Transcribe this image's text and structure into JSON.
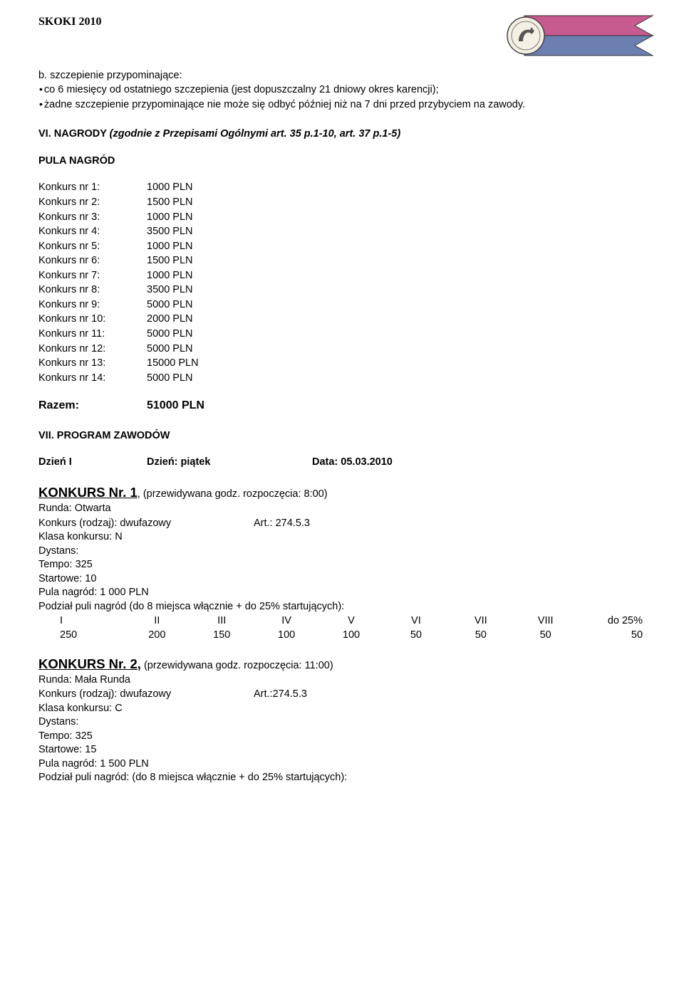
{
  "header": {
    "skoki": "SKOKI 2010"
  },
  "section_b": {
    "title": "b. szczepienie przypominające:",
    "bullet1": "co 6 miesięcy od ostatniego szczepienia (jest dopuszczalny 21 dniowy okres karencji);",
    "bullet2": "żadne szczepienie przypominające nie może się odbyć później niż na 7 dni przed przybyciem na zawody."
  },
  "section_vi": {
    "heading_bold": "VI. NAGRODY ",
    "heading_italic": "(zgodnie z Przepisami Ogólnymi art. 35 p.1-10, art. 37 p.1-5)"
  },
  "pula_label": "PULA NAGRÓD",
  "prizes": [
    {
      "label": "Konkurs nr 1:",
      "value": "1000 PLN"
    },
    {
      "label": "Konkurs nr 2:",
      "value": "1500 PLN"
    },
    {
      "label": "Konkurs nr 3:",
      "value": "1000 PLN"
    },
    {
      "label": "Konkurs nr 4:",
      "value": "3500 PLN"
    },
    {
      "label": "Konkurs nr 5:",
      "value": "1000 PLN"
    },
    {
      "label": "Konkurs nr 6:",
      "value": "1500 PLN"
    },
    {
      "label": "Konkurs nr 7:",
      "value": "1000 PLN"
    },
    {
      "label": "Konkurs nr 8:",
      "value": "3500 PLN"
    },
    {
      "label": "Konkurs nr 9:",
      "value": "5000 PLN"
    },
    {
      "label": "Konkurs nr 10:",
      "value": "2000 PLN"
    },
    {
      "label": "Konkurs nr 11:",
      "value": "5000 PLN"
    },
    {
      "label": "Konkurs nr 12:",
      "value": "5000 PLN"
    },
    {
      "label": "Konkurs nr 13:",
      "value": "15000 PLN"
    },
    {
      "label": "Konkurs nr 14:",
      "value": "5000 PLN"
    }
  ],
  "razem": {
    "label": "Razem:",
    "value": "51000 PLN"
  },
  "section_vii": "VII. PROGRAM ZAWODÓW",
  "day": {
    "col1": "Dzień I",
    "col2": "Dzień: piątek",
    "col3": "Data: 05.03.2010"
  },
  "konkurs1": {
    "title": "KONKURS Nr. 1",
    "suffix": ", (przewidywana godz. rozpoczęcia: 8:00)",
    "lines": {
      "runda": "Runda: Otwarta",
      "rodzaj_label": "Konkurs (rodzaj): dwufazowy",
      "rodzaj_art": "Art.: 274.5.3",
      "klasa": "Klasa konkursu: N",
      "dystans": "Dystans:",
      "tempo": "Tempo: 325",
      "startowe": "Startowe: 10",
      "pula": "Pula nagród: 1 000 PLN",
      "podzial": "Podział puli nagród (do 8 miejsca włącznie + do 25% startujących):"
    },
    "dist": {
      "headers": [
        "I",
        "II",
        "III",
        "IV",
        "V",
        "VI",
        "VII",
        "VIII",
        "do 25%"
      ],
      "values": [
        "250",
        "200",
        "150",
        "100",
        "100",
        "50",
        "50",
        "50",
        "50"
      ]
    }
  },
  "konkurs2": {
    "title": "KONKURS Nr. 2,",
    "suffix": " (przewidywana godz. rozpoczęcia: 11:00)",
    "lines": {
      "runda": "Runda: Mała Runda",
      "rodzaj_label": "Konkurs (rodzaj): dwufazowy",
      "rodzaj_art": "Art.:274.5.3",
      "klasa": "Klasa konkursu: C",
      "dystans": "Dystans:",
      "tempo": "Tempo: 325",
      "startowe": "Startowe: 15",
      "pula": "Pula nagród: 1 500 PLN",
      "podzial": "Podział puli nagród: (do 8 miejsca włącznie + do 25% startujących):"
    }
  }
}
